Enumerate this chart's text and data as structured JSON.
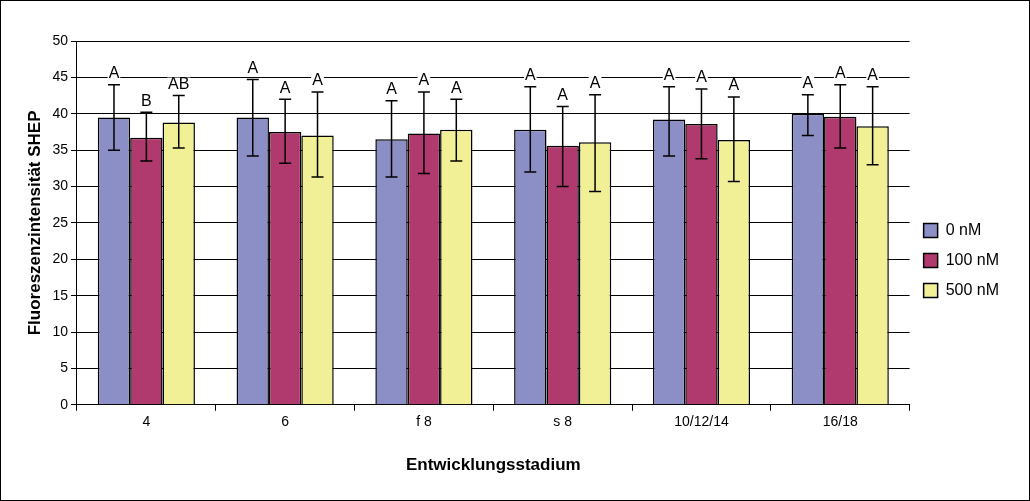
{
  "chart_data": {
    "type": "bar",
    "xlabel": "Entwicklungsstadium",
    "ylabel": "Fluoreszenzintensität SHEP",
    "categories": [
      "4",
      "6",
      "f 8",
      "s 8",
      "10/12/14",
      "16/18"
    ],
    "series": [
      {
        "name": "0 nM",
        "color": "#8c8fc6",
        "values": [
          39.5,
          39.5,
          36.5,
          37.8,
          39.2,
          40
        ],
        "errors": [
          [
            35,
            44
          ],
          [
            34.2,
            44.7
          ],
          [
            31.3,
            41.8
          ],
          [
            32,
            43.7
          ],
          [
            34.2,
            43.7
          ],
          [
            37,
            42.6
          ]
        ]
      },
      {
        "name": "100 nM",
        "color": "#b0396e",
        "values": [
          36.7,
          37.5,
          37.3,
          35.6,
          38.6,
          39.6
        ],
        "errors": [
          [
            33.5,
            40.2
          ],
          [
            33.2,
            42
          ],
          [
            31.8,
            43
          ],
          [
            30,
            41
          ],
          [
            33.8,
            43.4
          ],
          [
            35.3,
            44
          ]
        ]
      },
      {
        "name": "500 nM",
        "color": "#f2f096",
        "values": [
          38.8,
          37,
          37.8,
          36.1,
          36.4,
          38.3
        ],
        "errors": [
          [
            35.3,
            42.5
          ],
          [
            31.3,
            43
          ],
          [
            33.5,
            42
          ],
          [
            29.3,
            42.6
          ],
          [
            30.7,
            42.3
          ],
          [
            33,
            43.7
          ]
        ]
      }
    ],
    "annotations": [
      "A",
      "B",
      "AB",
      "A",
      "A",
      "A",
      "A",
      "A",
      "A",
      "A",
      "A",
      "A",
      "A",
      "A",
      "A",
      "A",
      "A",
      "A"
    ],
    "ylim": [
      0,
      50
    ],
    "yticks": [
      0,
      5,
      10,
      15,
      20,
      25,
      30,
      35,
      40,
      45,
      50
    ],
    "grid": "y",
    "legend": "right"
  }
}
